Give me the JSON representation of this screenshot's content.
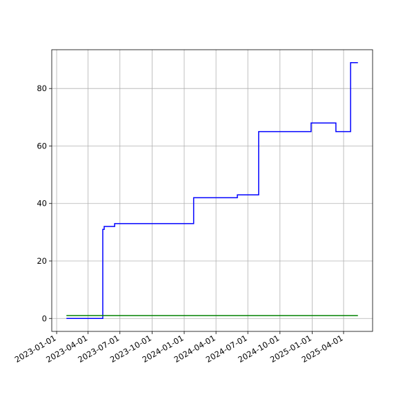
{
  "chart_data": {
    "type": "line",
    "xlim": [
      "2022-12-18",
      "2025-06-23"
    ],
    "xticks": [
      "2023-01-01",
      "2023-04-01",
      "2023-07-01",
      "2023-10-01",
      "2024-01-01",
      "2024-04-01",
      "2024-07-01",
      "2024-10-01",
      "2025-01-01",
      "2025-04-01"
    ],
    "ylim": [
      -4.5,
      93.5
    ],
    "yticks": [
      0,
      20,
      40,
      60,
      80
    ],
    "grid": true,
    "series": [
      {
        "color": "#0000ff",
        "x": [
          "2023-01-29",
          "2023-05-13",
          "2023-05-13",
          "2023-05-17",
          "2023-05-17",
          "2023-06-16",
          "2023-06-16",
          "2024-01-28",
          "2024-01-28",
          "2024-06-01",
          "2024-06-01",
          "2024-08-01",
          "2024-08-01",
          "2024-12-29",
          "2024-12-29",
          "2025-03-10",
          "2025-03-10",
          "2025-04-21",
          "2025-04-21",
          "2025-05-12"
        ],
        "values": [
          0,
          0,
          31,
          31,
          32,
          32,
          33,
          33,
          42,
          42,
          43,
          43,
          65,
          65,
          68,
          68,
          65,
          65,
          89,
          89
        ]
      },
      {
        "color": "#008000",
        "x": [
          "2023-01-29",
          "2025-05-12"
        ],
        "values": [
          1,
          1
        ]
      }
    ]
  }
}
